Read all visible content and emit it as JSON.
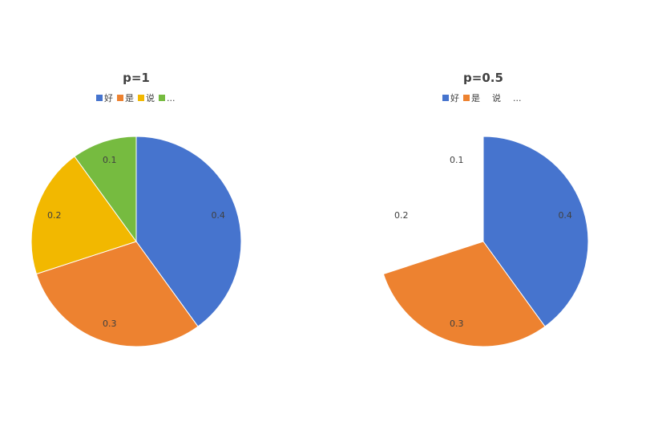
{
  "chart_data": [
    {
      "type": "pie",
      "title": "p=1",
      "categories": [
        "好",
        "是",
        "说",
        "..."
      ],
      "values": [
        0.4,
        0.3,
        0.2,
        0.1
      ],
      "colors": [
        "#4674CE",
        "#ED8230",
        "#F2B800",
        "#76BB40"
      ],
      "visible": [
        true,
        true,
        true,
        true
      ],
      "labels": [
        "0.4",
        "0.3",
        "0.2",
        "0.1"
      ],
      "legend_position": "top",
      "start_angle_deg": 0,
      "direction": "clockwise"
    },
    {
      "type": "pie",
      "title": "p=0.5",
      "categories": [
        "好",
        "是",
        "说",
        "..."
      ],
      "values": [
        0.4,
        0.3,
        0.2,
        0.1
      ],
      "colors": [
        "#4674CE",
        "#ED8230",
        "#F2B800",
        "#76BB40"
      ],
      "visible": [
        true,
        true,
        false,
        false
      ],
      "labels": [
        "0.4",
        "0.3",
        "0.2",
        "0.1"
      ],
      "legend_position": "top",
      "start_angle_deg": 0,
      "direction": "clockwise"
    }
  ]
}
